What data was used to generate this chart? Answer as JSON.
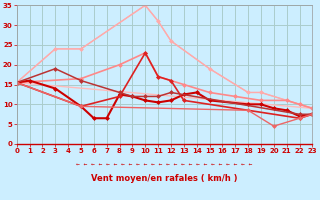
{
  "background_color": "#cceeff",
  "grid_color": "#aacccc",
  "xlabel": "Vent moyen/en rafales ( km/h )",
  "xlim": [
    0,
    23
  ],
  "ylim": [
    0,
    35
  ],
  "yticks": [
    0,
    5,
    10,
    15,
    20,
    25,
    30,
    35
  ],
  "xticks": [
    0,
    1,
    2,
    3,
    4,
    5,
    6,
    7,
    8,
    9,
    10,
    11,
    12,
    13,
    14,
    15,
    16,
    17,
    18,
    19,
    20,
    21,
    22,
    23
  ],
  "lines": [
    {
      "x": [
        0,
        3,
        5,
        10,
        11,
        12,
        15,
        18,
        19,
        22,
        23
      ],
      "y": [
        15.5,
        24,
        24,
        35,
        31,
        26,
        19,
        13,
        13,
        10,
        9
      ],
      "color": "#ffaaaa",
      "lw": 1.0,
      "marker": null
    },
    {
      "x": [
        0,
        3,
        5,
        10,
        11,
        12,
        15,
        18,
        19,
        22,
        23
      ],
      "y": [
        15.5,
        24,
        24,
        35,
        31,
        26,
        19,
        13,
        13,
        10,
        9
      ],
      "color": "#ffaaaa",
      "lw": 0.8,
      "marker": "D",
      "markersize": 2.5
    },
    {
      "x": [
        0,
        23
      ],
      "y": [
        15.5,
        9
      ],
      "color": "#ffbbbb",
      "lw": 1.0,
      "marker": null
    },
    {
      "x": [
        0,
        5,
        8,
        10,
        11,
        13,
        15,
        17,
        19,
        21,
        22,
        23
      ],
      "y": [
        15.5,
        16.5,
        20,
        23,
        17,
        15,
        13,
        12,
        11,
        11,
        10,
        9
      ],
      "color": "#ff8888",
      "lw": 1.2,
      "marker": "D",
      "markersize": 2.5
    },
    {
      "x": [
        0,
        1,
        3,
        5,
        6,
        7,
        8,
        9,
        10,
        11,
        12,
        13,
        14,
        15,
        18,
        19,
        20,
        21,
        22,
        23
      ],
      "y": [
        15.5,
        16,
        14,
        9.5,
        6.5,
        6.5,
        12.5,
        12,
        11,
        10.5,
        11,
        12.5,
        13,
        11,
        10,
        10,
        9,
        8.5,
        7,
        7.5
      ],
      "color": "#cc0000",
      "lw": 1.5,
      "marker": "D",
      "markersize": 2.5
    },
    {
      "x": [
        0,
        5,
        8,
        10,
        11,
        12,
        13,
        22,
        23
      ],
      "y": [
        15.5,
        9.5,
        12,
        23,
        17,
        16,
        11,
        6.5,
        7.5
      ],
      "color": "#dd2222",
      "lw": 1.2,
      "marker": "D",
      "markersize": 2.5
    },
    {
      "x": [
        0,
        3,
        5,
        8,
        9,
        10,
        11,
        12,
        22,
        23
      ],
      "y": [
        15.5,
        19,
        16,
        13,
        12,
        12,
        12,
        13,
        7.5,
        7.5
      ],
      "color": "#bb3333",
      "lw": 1.1,
      "marker": "D",
      "markersize": 2.5
    },
    {
      "x": [
        0,
        5,
        18,
        20,
        22,
        23
      ],
      "y": [
        15.5,
        9.5,
        8.5,
        4.5,
        6.5,
        7.5
      ],
      "color": "#ee6666",
      "lw": 1.0,
      "marker": "D",
      "markersize": 2.5
    }
  ],
  "arrow_color": "#cc0000",
  "arrow_symbol": "←"
}
